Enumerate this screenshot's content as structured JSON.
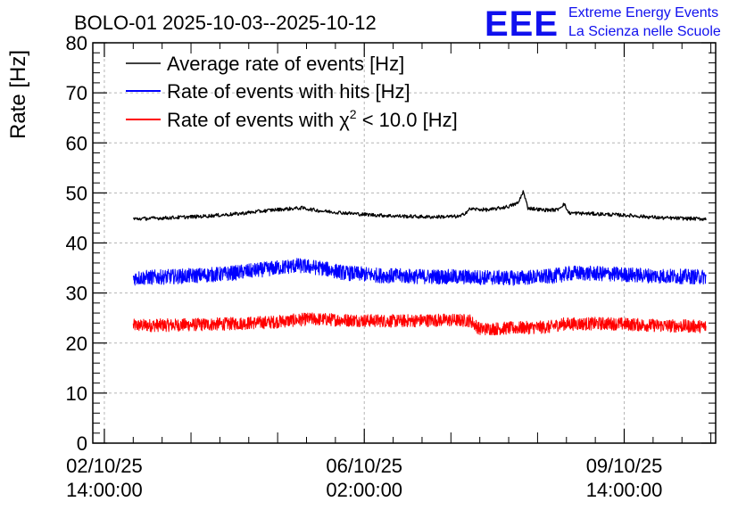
{
  "chart_data": {
    "type": "line",
    "title": "BOLO-01 2025-10-03--2025-10-12",
    "xlabel": "",
    "ylabel": "Rate [Hz]",
    "ylim": [
      0,
      80
    ],
    "yticks": [
      0,
      10,
      20,
      30,
      40,
      50,
      60,
      70,
      80
    ],
    "xlim_hours": [
      -4.8,
      254
    ],
    "x_unit": "hours since 02/10/25 14:00:00",
    "xticks": [
      {
        "hours": 0,
        "date": "02/10/25",
        "time": "14:00:00"
      },
      {
        "hours": 108,
        "date": "06/10/25",
        "time": "02:00:00"
      },
      {
        "hours": 216,
        "date": "09/10/25",
        "time": "14:00:00"
      }
    ],
    "grid": true,
    "legend_position": "top-left",
    "series": [
      {
        "name": "Average rate of events [Hz]",
        "color": "#000000",
        "noise": 0.35,
        "points": [
          [
            12,
            44.8
          ],
          [
            25,
            45.0
          ],
          [
            40,
            45.3
          ],
          [
            55,
            45.8
          ],
          [
            70,
            46.6
          ],
          [
            82,
            47.0
          ],
          [
            90,
            46.4
          ],
          [
            100,
            46.0
          ],
          [
            108,
            45.7
          ],
          [
            120,
            45.4
          ],
          [
            135,
            45.2
          ],
          [
            148,
            45.3
          ],
          [
            152,
            46.8
          ],
          [
            160,
            46.6
          ],
          [
            168,
            47.3
          ],
          [
            172,
            48.0
          ],
          [
            174,
            50.3
          ],
          [
            176,
            47.0
          ],
          [
            182,
            46.6
          ],
          [
            188,
            46.6
          ],
          [
            191,
            47.8
          ],
          [
            193,
            46.0
          ],
          [
            205,
            45.8
          ],
          [
            218,
            45.5
          ],
          [
            232,
            45.0
          ],
          [
            250,
            44.8
          ]
        ]
      },
      {
        "name": "Rate of events with hits [Hz]",
        "color": "#0000ff",
        "noise": 1.5,
        "points": [
          [
            12,
            33.0
          ],
          [
            30,
            33.3
          ],
          [
            50,
            33.8
          ],
          [
            68,
            34.8
          ],
          [
            80,
            35.5
          ],
          [
            90,
            35.0
          ],
          [
            100,
            34.0
          ],
          [
            115,
            33.5
          ],
          [
            130,
            33.3
          ],
          [
            150,
            33.2
          ],
          [
            170,
            33.0
          ],
          [
            185,
            33.3
          ],
          [
            195,
            34.0
          ],
          [
            210,
            33.8
          ],
          [
            230,
            33.4
          ],
          [
            250,
            33.2
          ]
        ]
      },
      {
        "name": "Rate of events with χ² < 10.0 [Hz]",
        "color": "#ff0000",
        "noise": 1.3,
        "points": [
          [
            12,
            23.5
          ],
          [
            30,
            23.6
          ],
          [
            50,
            23.8
          ],
          [
            70,
            24.2
          ],
          [
            85,
            24.8
          ],
          [
            100,
            24.6
          ],
          [
            120,
            24.4
          ],
          [
            140,
            24.6
          ],
          [
            152,
            24.5
          ],
          [
            156,
            22.8
          ],
          [
            170,
            23.0
          ],
          [
            185,
            23.2
          ],
          [
            190,
            23.8
          ],
          [
            210,
            23.9
          ],
          [
            230,
            23.5
          ],
          [
            250,
            23.3
          ]
        ]
      }
    ],
    "data_range_hours": [
      12,
      250
    ]
  },
  "legend": {
    "entries": [
      {
        "label": "Average rate of events [Hz]",
        "color": "#000000"
      },
      {
        "label_prefix": "Rate of events with hits [Hz]",
        "color": "#0000ff"
      },
      {
        "label_prefix": "Rate of events with ",
        "chi": "χ",
        "sup": "2",
        "label_suffix": " < 10.0 [Hz]",
        "color": "#ff0000"
      }
    ]
  },
  "logo": {
    "mark": "EEE",
    "line1": "Extreme Energy Events",
    "line2": "La Scienza nelle Scuole"
  }
}
